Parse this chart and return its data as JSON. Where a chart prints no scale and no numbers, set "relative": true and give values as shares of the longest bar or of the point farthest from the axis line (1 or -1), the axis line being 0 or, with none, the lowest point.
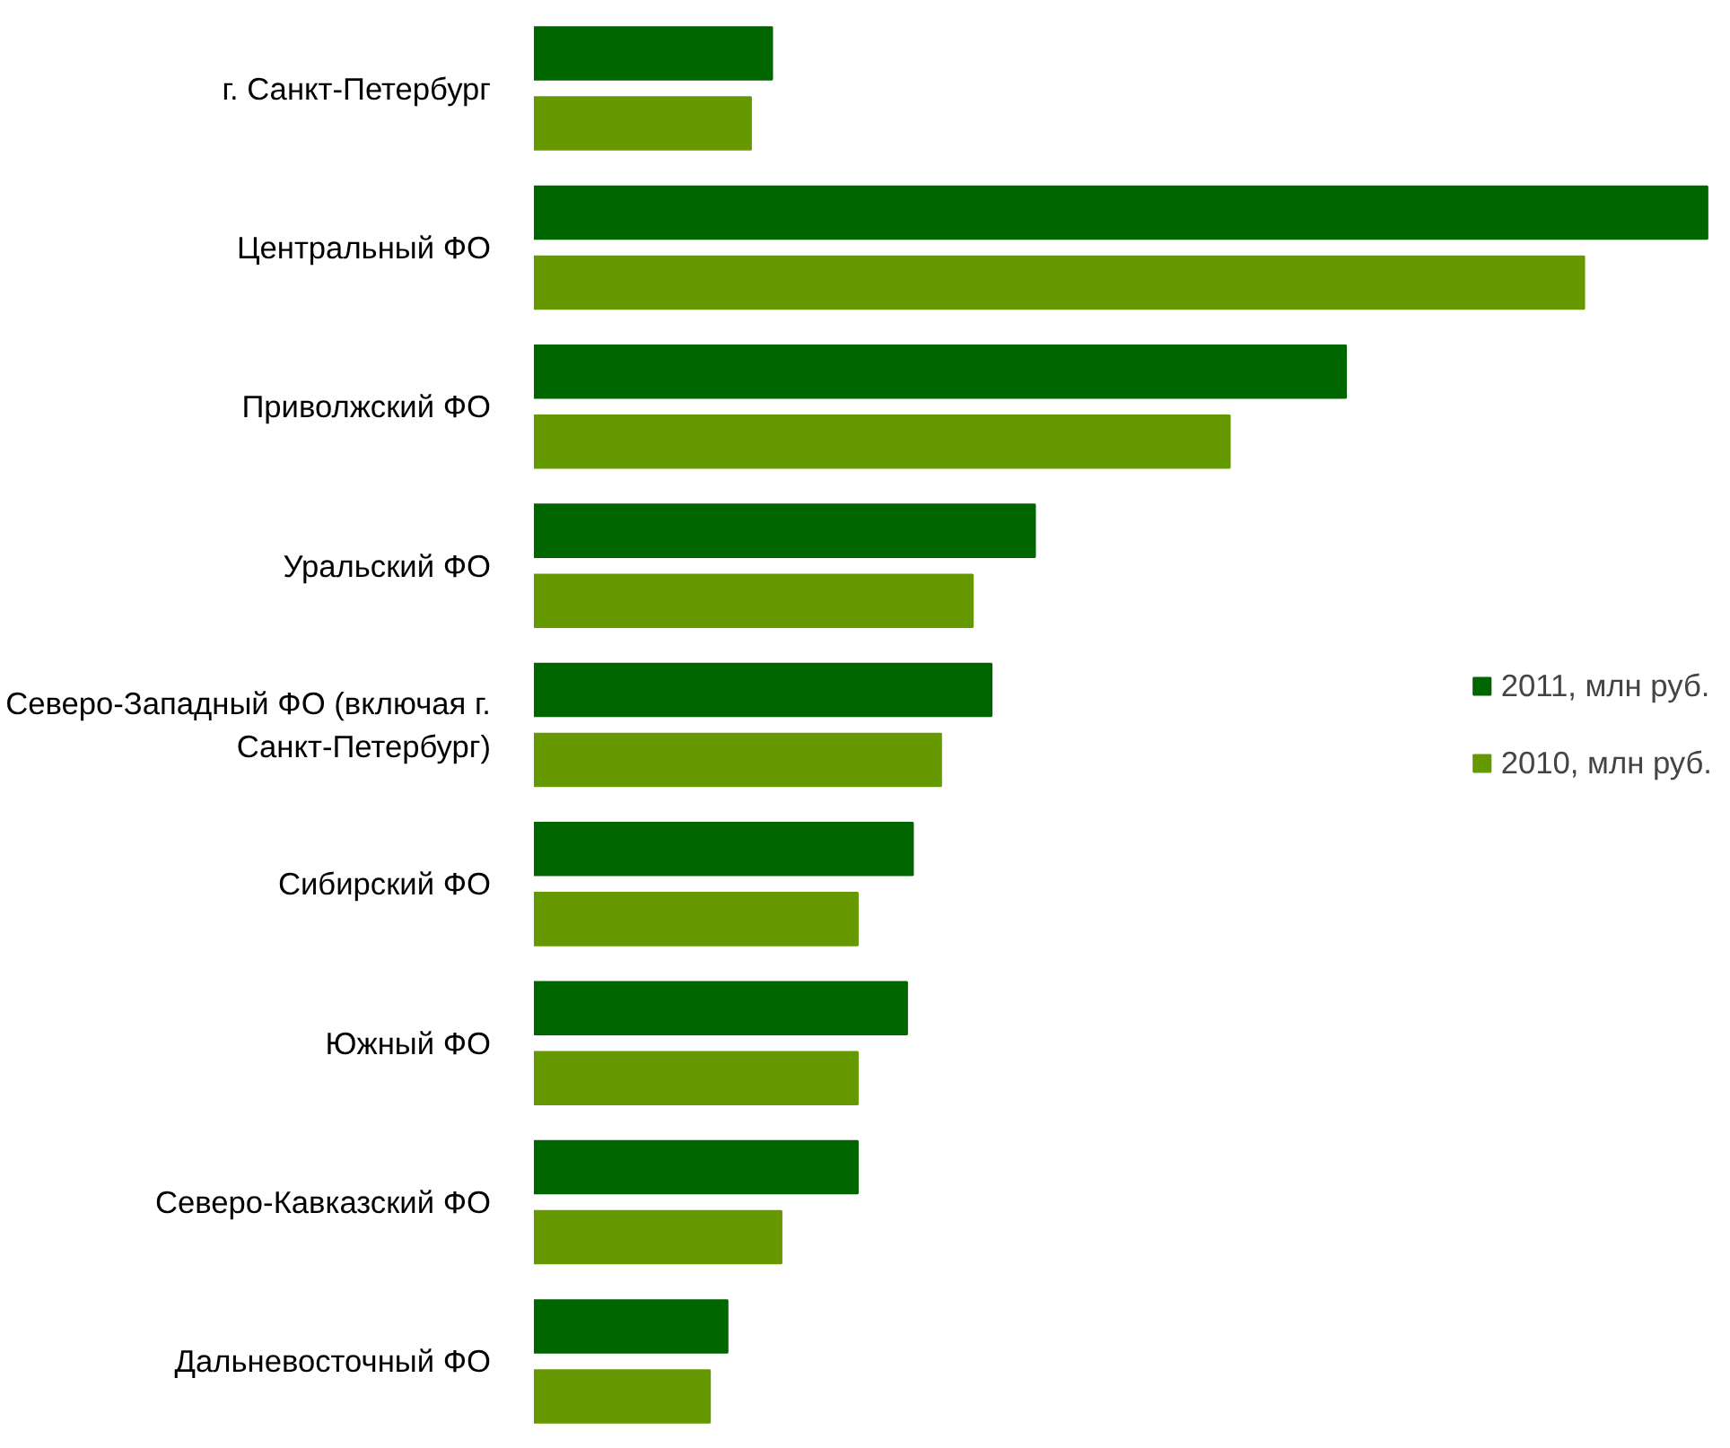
{
  "chart_data": {
    "type": "bar",
    "orientation": "horizontal",
    "relative": true,
    "categories": [
      "г. Санкт-Петербург",
      "Центральный ФО",
      "Приволжский ФО",
      "Уральский ФО",
      "Северо-Западный ФО (включая г. Санкт-Петербург)",
      "Сибирский ФО",
      "Южный ФО",
      "Северо-Кавказский ФО",
      "Дальневосточный ФО"
    ],
    "series": [
      {
        "name": "2011, млн руб.",
        "color": "#006600",
        "values": [
          0.203,
          1,
          0.692,
          0.427,
          0.39,
          0.323,
          0.318,
          0.276,
          0.165
        ]
      },
      {
        "name": "2010, млн руб.",
        "color": "#669900",
        "values": [
          0.185,
          0.895,
          0.593,
          0.374,
          0.347,
          0.276,
          0.276,
          0.211,
          0.15
        ]
      }
    ],
    "legend": "right",
    "grid": false
  }
}
